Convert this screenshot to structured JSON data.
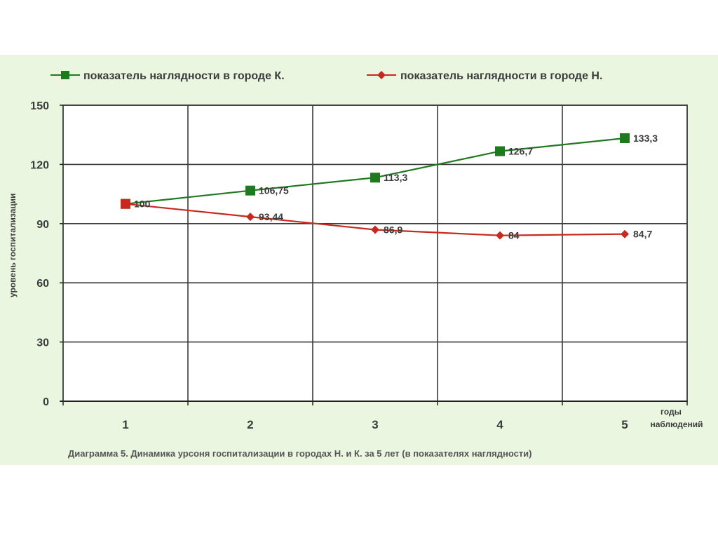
{
  "chart_data": {
    "type": "line",
    "title": "",
    "caption": "Диаграмма 5. Динамика урсоня госпитализации в городах Н. и К. за 5 лет (в показателях наглядности)",
    "ylabel": "уровень госпитализации",
    "xlabel_line1": "годы",
    "xlabel_line2": "наблюдений",
    "x": [
      1,
      2,
      3,
      4,
      5
    ],
    "x_tick_labels": [
      "1",
      "2",
      "3",
      "4",
      "5"
    ],
    "ylim": [
      0,
      150
    ],
    "y_ticks": [
      0,
      30,
      60,
      90,
      120,
      150
    ],
    "grid": true,
    "legend_position": "top",
    "series": [
      {
        "name": "показатель наглядности в городе К.",
        "color": "#1e7a1e",
        "marker": "square",
        "values": [
          100,
          106.75,
          113.3,
          126.7,
          133.3
        ],
        "labels": [
          "100",
          "106,75",
          "113,3",
          "126,7",
          "133,3"
        ]
      },
      {
        "name": "показатель наглядности в городе Н.",
        "color": "#c8281e",
        "marker": "diamond",
        "values": [
          100,
          93.44,
          86.9,
          84,
          84.7
        ],
        "labels": [
          "",
          "93,44",
          "86,9",
          "84",
          "84,7"
        ]
      }
    ]
  }
}
